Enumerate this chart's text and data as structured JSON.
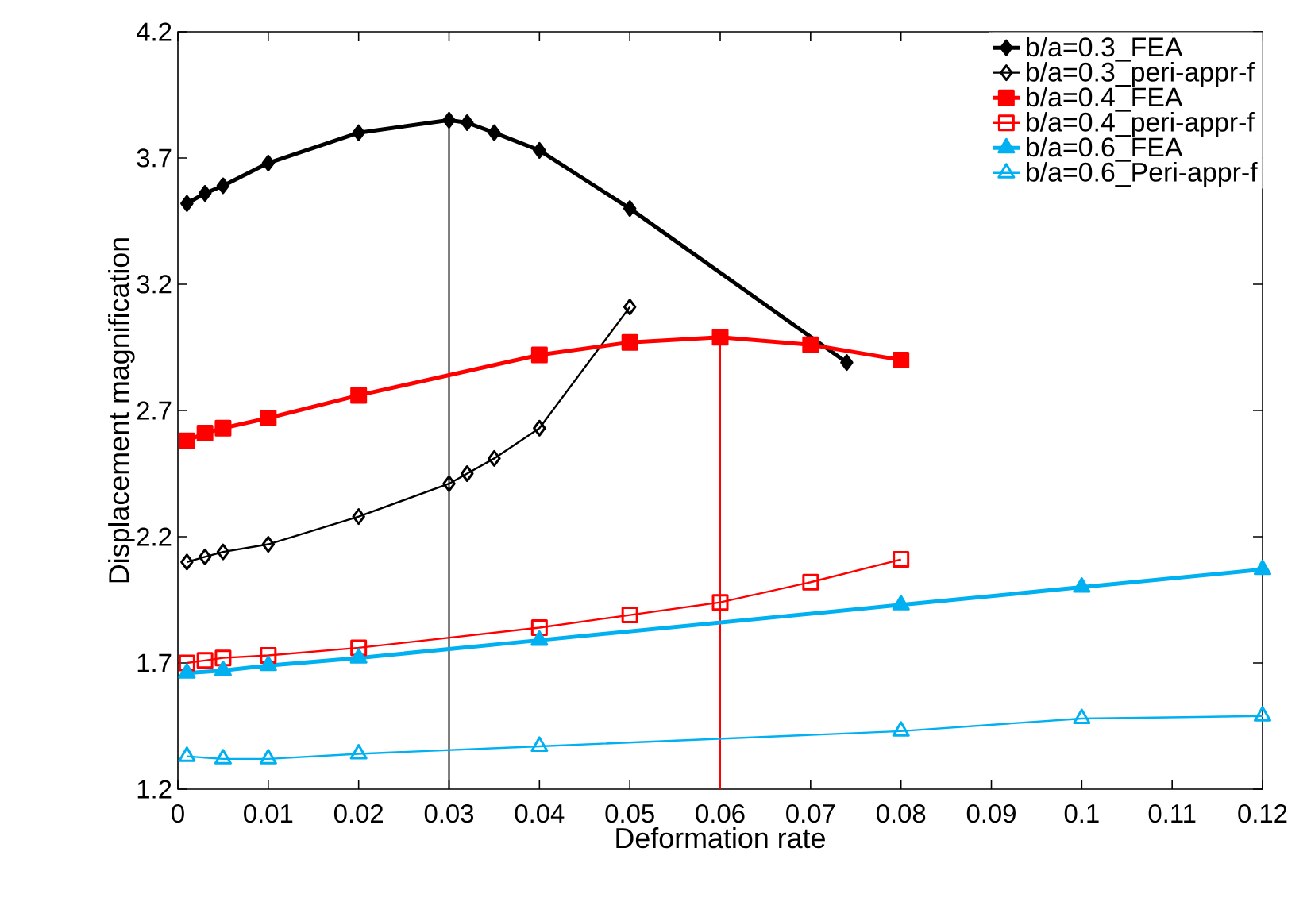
{
  "chart_data": {
    "type": "line",
    "xlabel": "Deformation rate",
    "ylabel": "Displacement magnification",
    "xlim": [
      0,
      0.12
    ],
    "ylim": [
      1.2,
      4.2
    ],
    "xticks": [
      0,
      0.01,
      0.02,
      0.03,
      0.04,
      0.05,
      0.06,
      0.07,
      0.08,
      0.09,
      0.1,
      0.11,
      0.12
    ],
    "yticks": [
      1.2,
      1.7,
      2.2,
      2.7,
      3.2,
      3.7,
      4.2
    ],
    "legend": "top right",
    "series": [
      {
        "name": "b/a=0.3_FEA",
        "color": "#000000",
        "marker": "diamond",
        "x": [
          0.001,
          0.003,
          0.005,
          0.01,
          0.02,
          0.03,
          0.032,
          0.035,
          0.04,
          0.05,
          0.074
        ],
        "values": [
          3.52,
          3.56,
          3.59,
          3.68,
          3.8,
          3.85,
          3.84,
          3.8,
          3.73,
          3.5,
          2.89
        ]
      },
      {
        "name": "b/a=0.3_peri-appr-f",
        "color": "#000000",
        "marker": "diamond",
        "x": [
          0.001,
          0.003,
          0.005,
          0.01,
          0.02,
          0.03,
          0.032,
          0.035,
          0.04,
          0.05
        ],
        "values": [
          2.1,
          2.12,
          2.14,
          2.17,
          2.28,
          2.41,
          2.45,
          2.51,
          2.63,
          3.11
        ]
      },
      {
        "name": "b/a=0.4_FEA",
        "color": "#ff0000",
        "marker": "square",
        "x": [
          0.001,
          0.003,
          0.005,
          0.01,
          0.02,
          0.04,
          0.05,
          0.06,
          0.07,
          0.08
        ],
        "values": [
          2.58,
          2.61,
          2.63,
          2.67,
          2.76,
          2.92,
          2.97,
          2.99,
          2.96,
          2.9
        ]
      },
      {
        "name": "b/a=0.4_peri-appr-f",
        "color": "#ff0000",
        "marker": "square",
        "x": [
          0.001,
          0.003,
          0.005,
          0.01,
          0.02,
          0.04,
          0.05,
          0.06,
          0.07,
          0.08
        ],
        "values": [
          1.7,
          1.71,
          1.72,
          1.73,
          1.76,
          1.84,
          1.89,
          1.94,
          2.02,
          2.11
        ]
      },
      {
        "name": "b/a=0.6_FEA",
        "color": "#00b0f0",
        "marker": "triangle",
        "x": [
          0.001,
          0.005,
          0.01,
          0.02,
          0.04,
          0.08,
          0.1,
          0.12
        ],
        "values": [
          1.66,
          1.67,
          1.69,
          1.72,
          1.79,
          1.93,
          2.0,
          2.07
        ]
      },
      {
        "name": "b/a=0.6_Peri-appr-f",
        "color": "#00b0f0",
        "marker": "triangle",
        "x": [
          0.001,
          0.005,
          0.01,
          0.02,
          0.04,
          0.08,
          0.1,
          0.12
        ],
        "values": [
          1.33,
          1.32,
          1.32,
          1.34,
          1.37,
          1.43,
          1.48,
          1.49
        ]
      }
    ],
    "ref_lines": [
      {
        "axis": "x",
        "value": 0.03,
        "color": "#000000"
      },
      {
        "axis": "x",
        "value": 0.06,
        "color": "#ff0000"
      }
    ]
  }
}
